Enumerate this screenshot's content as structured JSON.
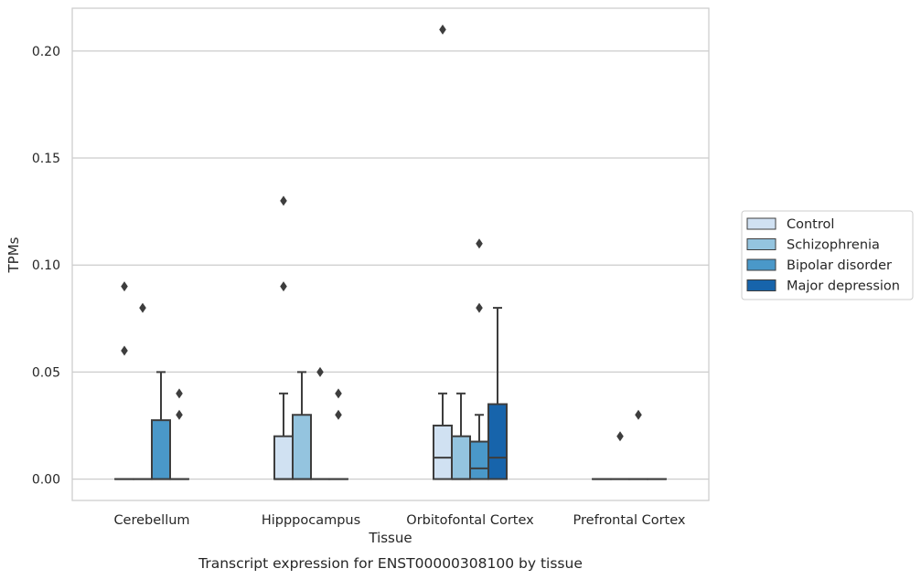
{
  "chart_data": {
    "type": "boxplot",
    "xlabel": "Tissue",
    "ylabel": "TPMs",
    "caption": "Transcript expression for ENST00000308100 by tissue",
    "ylim": [
      -0.01,
      0.22
    ],
    "yticks": [
      0.0,
      0.05,
      0.1,
      0.15,
      0.2
    ],
    "ytick_labels": [
      "0.00",
      "0.05",
      "0.10",
      "0.15",
      "0.20"
    ],
    "grid": "horizontal",
    "legend_position": "right-outside",
    "categories": [
      "Cerebellum",
      "Hipppocampus",
      "Orbitofontal Cortex",
      "Prefrontal Cortex"
    ],
    "series": [
      {
        "name": "Control",
        "color": "#d0e1f2",
        "boxes": [
          {
            "q1": 0.0,
            "median": 0.0,
            "q3": 0.0,
            "whisker_low": 0.0,
            "whisker_high": 0.0,
            "outliers": [
              0.06,
              0.09
            ]
          },
          {
            "q1": 0.0,
            "median": 0.0,
            "q3": 0.02,
            "whisker_low": 0.0,
            "whisker_high": 0.04,
            "outliers": [
              0.09,
              0.13
            ]
          },
          {
            "q1": 0.0,
            "median": 0.01,
            "q3": 0.025,
            "whisker_low": 0.0,
            "whisker_high": 0.04,
            "outliers": [
              0.21
            ]
          },
          {
            "q1": 0.0,
            "median": 0.0,
            "q3": 0.0,
            "whisker_low": 0.0,
            "whisker_high": 0.0,
            "outliers": []
          }
        ]
      },
      {
        "name": "Schizophrenia",
        "color": "#94c4df",
        "boxes": [
          {
            "q1": 0.0,
            "median": 0.0,
            "q3": 0.0,
            "whisker_low": 0.0,
            "whisker_high": 0.0,
            "outliers": [
              0.08
            ]
          },
          {
            "q1": 0.0,
            "median": 0.0,
            "q3": 0.03,
            "whisker_low": 0.0,
            "whisker_high": 0.05,
            "outliers": []
          },
          {
            "q1": 0.0,
            "median": 0.0,
            "q3": 0.02,
            "whisker_low": 0.0,
            "whisker_high": 0.04,
            "outliers": []
          },
          {
            "q1": 0.0,
            "median": 0.0,
            "q3": 0.0,
            "whisker_low": 0.0,
            "whisker_high": 0.0,
            "outliers": [
              0.02
            ]
          }
        ]
      },
      {
        "name": "Bipolar disorder",
        "color": "#4a98c9",
        "boxes": [
          {
            "q1": 0.0,
            "median": 0.0,
            "q3": 0.0275,
            "whisker_low": 0.0,
            "whisker_high": 0.05,
            "outliers": []
          },
          {
            "q1": 0.0,
            "median": 0.0,
            "q3": 0.0,
            "whisker_low": 0.0,
            "whisker_high": 0.0,
            "outliers": [
              0.05
            ]
          },
          {
            "q1": 0.0,
            "median": 0.005,
            "q3": 0.0175,
            "whisker_low": 0.0,
            "whisker_high": 0.03,
            "outliers": [
              0.08,
              0.11
            ]
          },
          {
            "q1": 0.0,
            "median": 0.0,
            "q3": 0.0,
            "whisker_low": 0.0,
            "whisker_high": 0.0,
            "outliers": [
              0.03
            ]
          }
        ]
      },
      {
        "name": "Major depression",
        "color": "#1764ab",
        "boxes": [
          {
            "q1": 0.0,
            "median": 0.0,
            "q3": 0.0,
            "whisker_low": 0.0,
            "whisker_high": 0.0,
            "outliers": [
              0.03,
              0.04
            ]
          },
          {
            "q1": 0.0,
            "median": 0.0,
            "q3": 0.0,
            "whisker_low": 0.0,
            "whisker_high": 0.0,
            "outliers": [
              0.03,
              0.04
            ]
          },
          {
            "q1": 0.0,
            "median": 0.01,
            "q3": 0.035,
            "whisker_low": 0.0,
            "whisker_high": 0.08,
            "outliers": []
          },
          {
            "q1": 0.0,
            "median": 0.0,
            "q3": 0.0,
            "whisker_low": 0.0,
            "whisker_high": 0.0,
            "outliers": []
          }
        ]
      }
    ]
  },
  "colors": {
    "grid": "#cccccc",
    "frame": "#cccccc",
    "box_edge": "#3d3d3d",
    "text": "#262626"
  }
}
